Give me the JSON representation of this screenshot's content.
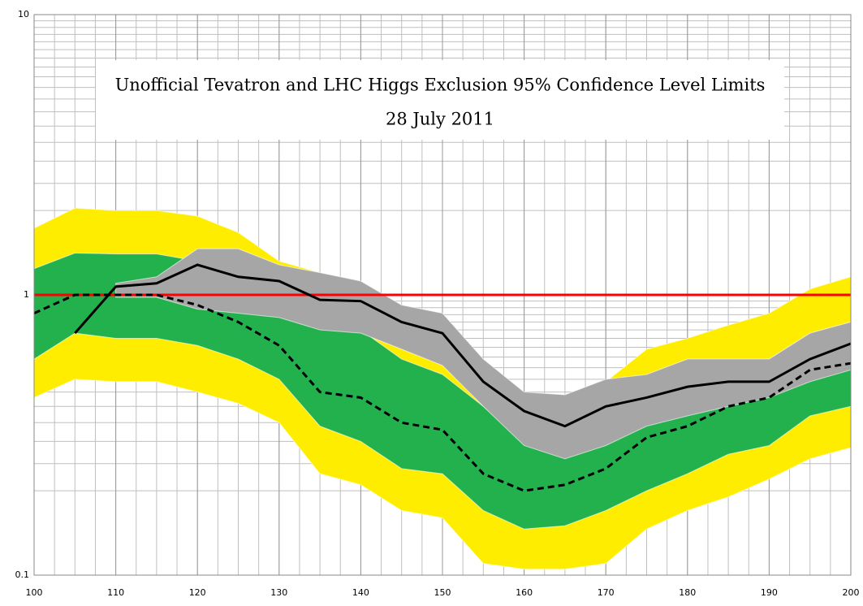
{
  "chart_data": {
    "type": "band-line",
    "title": "Unofficial Tevatron and LHC Higgs Exclusion 95% Confidence Level Limits",
    "subtitle": "28 July 2011",
    "x": [
      100,
      105,
      110,
      115,
      120,
      125,
      130,
      135,
      140,
      145,
      150,
      155,
      160,
      165,
      170,
      175,
      180,
      185,
      190,
      195,
      200
    ],
    "xlim": [
      100,
      200
    ],
    "xticks": [
      100,
      110,
      120,
      130,
      140,
      150,
      160,
      170,
      180,
      190,
      200
    ],
    "ylim": [
      0.1,
      10
    ],
    "yticks": [
      0.1,
      1,
      10
    ],
    "log_y": true,
    "grid": true,
    "bands": [
      {
        "color": "#ffed00",
        "upper": [
          1.73,
          2.04,
          2.0,
          2.0,
          1.91,
          1.67,
          1.32,
          1.2,
          1.1,
          0.78,
          0.78,
          0.59,
          0.41,
          0.43,
          0.49,
          0.64,
          0.7,
          0.78,
          0.86,
          1.05,
          1.16
        ],
        "lower": [
          0.43,
          0.5,
          0.49,
          0.49,
          0.45,
          0.41,
          0.35,
          0.23,
          0.21,
          0.17,
          0.16,
          0.11,
          0.105,
          0.105,
          0.11,
          0.146,
          0.17,
          0.19,
          0.22,
          0.26,
          0.285
        ]
      },
      {
        "color": "#22b14c",
        "upper": [
          1.24,
          1.41,
          1.4,
          1.4,
          1.32,
          1.16,
          0.96,
          0.8,
          0.75,
          0.59,
          0.52,
          0.4,
          0.3,
          0.29,
          0.34,
          0.43,
          0.5,
          0.56,
          0.59,
          0.73,
          0.8
        ],
        "lower": [
          0.59,
          0.73,
          0.7,
          0.7,
          0.66,
          0.59,
          0.5,
          0.34,
          0.3,
          0.24,
          0.23,
          0.17,
          0.146,
          0.15,
          0.17,
          0.2,
          0.23,
          0.27,
          0.29,
          0.37,
          0.4
        ]
      },
      {
        "color": "#a6a6a6",
        "upper": [
          null,
          null,
          1.1,
          1.16,
          1.46,
          1.46,
          1.28,
          1.2,
          1.12,
          0.92,
          0.86,
          0.59,
          0.45,
          0.44,
          0.5,
          0.52,
          0.59,
          0.59,
          0.59,
          0.73,
          0.8
        ],
        "lower": [
          null,
          null,
          0.98,
          0.98,
          0.89,
          0.86,
          0.83,
          0.75,
          0.73,
          0.64,
          0.56,
          0.4,
          0.29,
          0.26,
          0.29,
          0.34,
          0.37,
          0.4,
          0.43,
          0.49,
          0.54
        ]
      }
    ],
    "lines": [
      {
        "color": "#000000",
        "dashed": true,
        "values": [
          0.86,
          1.0,
          1.0,
          1.0,
          0.92,
          0.8,
          0.66,
          0.45,
          0.43,
          0.35,
          0.33,
          0.23,
          0.2,
          0.21,
          0.24,
          0.31,
          0.34,
          0.4,
          0.43,
          0.54,
          0.57
        ]
      },
      {
        "color": "#000000",
        "dashed": false,
        "values": [
          null,
          0.73,
          1.07,
          1.1,
          1.28,
          1.16,
          1.12,
          0.96,
          0.95,
          0.8,
          0.73,
          0.49,
          0.385,
          0.34,
          0.4,
          0.43,
          0.47,
          0.49,
          0.49,
          0.59,
          0.67
        ]
      }
    ],
    "reference_line": {
      "value": 1,
      "color": "#ff0000"
    }
  }
}
